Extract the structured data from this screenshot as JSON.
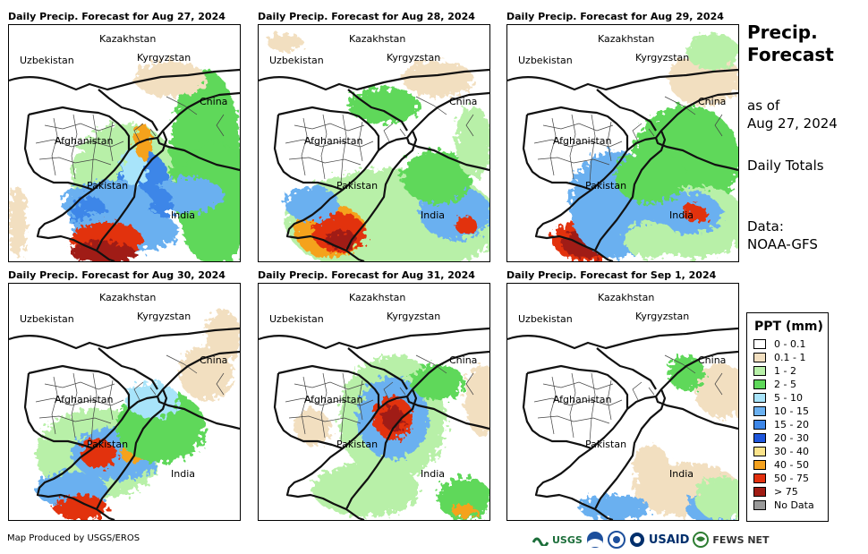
{
  "panels": [
    {
      "title": "Daily Precip. Forecast for Aug 27, 2024"
    },
    {
      "title": "Daily Precip. Forecast for Aug 28, 2024"
    },
    {
      "title": "Daily Precip. Forecast for Aug 29, 2024"
    },
    {
      "title": "Daily Precip. Forecast for Aug 30, 2024"
    },
    {
      "title": "Daily Precip. Forecast for Aug 31, 2024"
    },
    {
      "title": "Daily Precip. Forecast for Sep 1, 2024"
    }
  ],
  "map_labels": {
    "kazakhstan": "Kazakhstan",
    "uzbekistan": "Uzbekistan",
    "kyrgyzstan": "Kyrgyzstan",
    "china": "China",
    "afghanistan": "Afghanistan",
    "pakistan": "Pakistan",
    "india": "India"
  },
  "sidebar": {
    "title": "Precip.\nForecast",
    "as_of": "as of\nAug 27, 2024",
    "totals": "Daily Totals",
    "data_source": "Data:\nNOAA-GFS"
  },
  "legend": {
    "title": "PPT (mm)",
    "items": [
      {
        "label": "0 - 0.1",
        "color": "#ffffff"
      },
      {
        "label": "0.1 - 1",
        "color": "#f2dfc0"
      },
      {
        "label": "1 - 2",
        "color": "#b8f0a8"
      },
      {
        "label": "2 - 5",
        "color": "#5ed85a"
      },
      {
        "label": "5 - 10",
        "color": "#a8e4fa"
      },
      {
        "label": "10 - 15",
        "color": "#6ab0f0"
      },
      {
        "label": "15 - 20",
        "color": "#3c86e8"
      },
      {
        "label": "20 - 30",
        "color": "#1e56dc"
      },
      {
        "label": "30 - 40",
        "color": "#fbe38a"
      },
      {
        "label": "40 - 50",
        "color": "#f5a21e"
      },
      {
        "label": "50 - 75",
        "color": "#e2300e"
      },
      {
        "label": "> 75",
        "color": "#a01c14"
      },
      {
        "label": "No Data",
        "color": "#999999"
      }
    ]
  },
  "footer": {
    "credit": "Map Produced by USGS/EROS",
    "logo_usgs": "USGS",
    "logo_usaid": "USAID",
    "logo_fews": "FEWS NET"
  }
}
